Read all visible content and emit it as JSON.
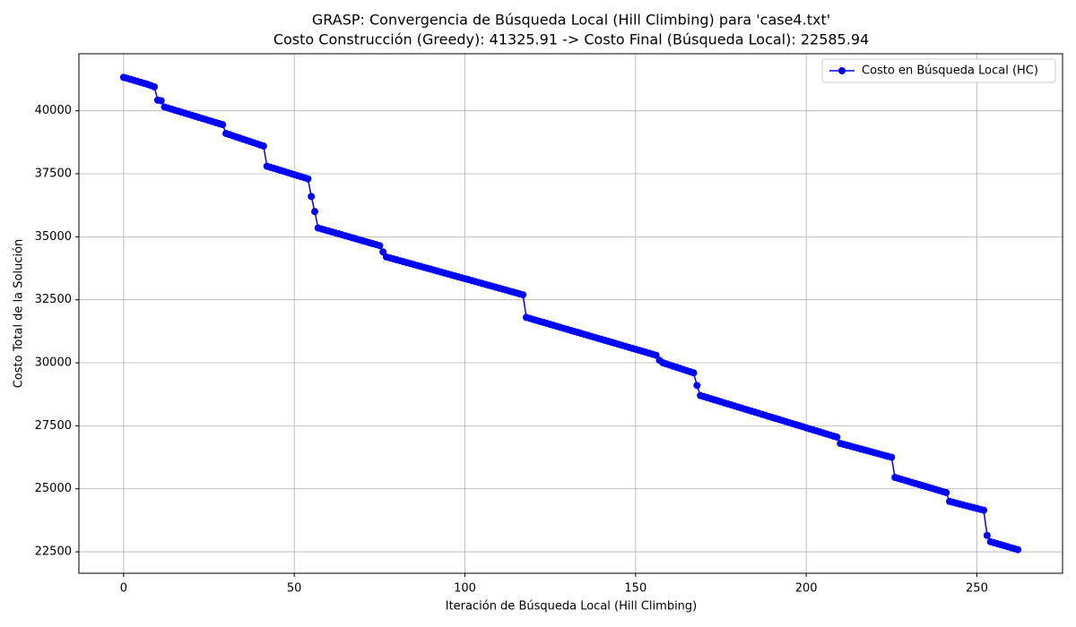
{
  "chart_data": {
    "type": "line",
    "title": "GRASP: Convergencia de Búsqueda Local (Hill Climbing) para 'case4.txt'",
    "subtitle": "Costo Construcción (Greedy): 41325.91 -> Costo Final (Búsqueda Local): 22585.94",
    "x_label": "Iteración de Búsqueda Local (Hill Climbing)",
    "y_label": "Costo Total de la Solución",
    "xlim": [
      -13.1,
      275.1
    ],
    "ylim": [
      21648.94,
      42262.88
    ],
    "xticks": [
      0,
      50,
      100,
      150,
      200,
      250
    ],
    "yticks": [
      22500,
      25000,
      27500,
      30000,
      32500,
      35000,
      37500,
      40000
    ],
    "grid": true,
    "legend_position": "upper right",
    "marker": "circle",
    "series": [
      {
        "name": "Costo en Búsqueda Local (HC)",
        "color": "#0000ff",
        "values": [
          41325.91,
          41290,
          41250,
          41210,
          41170,
          41130,
          41090,
          41050,
          41000,
          40950,
          40420,
          40400,
          40150,
          40109,
          40068,
          40026,
          39985,
          39944,
          39903,
          39862,
          39821,
          39779,
          39738,
          39697,
          39656,
          39615,
          39574,
          39532,
          39491,
          39450,
          39100,
          39055,
          39009,
          38964,
          38918,
          38873,
          38827,
          38782,
          38736,
          38691,
          38645,
          38600,
          37800,
          37758,
          37717,
          37675,
          37633,
          37592,
          37550,
          37508,
          37467,
          37425,
          37383,
          37342,
          37300,
          36600,
          36000,
          35350,
          35311,
          35272,
          35233,
          35194,
          35156,
          35117,
          35078,
          35039,
          35000,
          34961,
          34922,
          34883,
          34844,
          34806,
          34767,
          34728,
          34689,
          34650,
          34400,
          34200,
          34163,
          34125,
          34088,
          34050,
          34013,
          33975,
          33938,
          33900,
          33863,
          33825,
          33788,
          33750,
          33713,
          33675,
          33638,
          33600,
          33563,
          33525,
          33488,
          33450,
          33413,
          33375,
          33338,
          33300,
          33263,
          33225,
          33188,
          33150,
          33113,
          33075,
          33038,
          33000,
          32963,
          32925,
          32888,
          32850,
          32813,
          32775,
          32738,
          32700,
          31800,
          31761,
          31721,
          31682,
          31642,
          31603,
          31563,
          31524,
          31484,
          31445,
          31405,
          31366,
          31326,
          31287,
          31247,
          31208,
          31168,
          31129,
          31089,
          31050,
          31011,
          30971,
          30932,
          30892,
          30853,
          30813,
          30774,
          30734,
          30695,
          30655,
          30616,
          30576,
          30537,
          30497,
          30458,
          30418,
          30379,
          30339,
          30300,
          30100,
          30000,
          29956,
          29911,
          29867,
          29822,
          29778,
          29733,
          29689,
          29644,
          29600,
          29100,
          28700,
          28659,
          28618,
          28576,
          28535,
          28494,
          28453,
          28411,
          28370,
          28329,
          28288,
          28246,
          28205,
          28164,
          28123,
          28081,
          28040,
          27999,
          27958,
          27916,
          27875,
          27834,
          27793,
          27751,
          27710,
          27669,
          27628,
          27586,
          27545,
          27504,
          27463,
          27421,
          27380,
          27339,
          27298,
          27256,
          27215,
          27174,
          27133,
          27091,
          27050,
          26800,
          26763,
          26727,
          26690,
          26653,
          26617,
          26580,
          26543,
          26507,
          26470,
          26433,
          26397,
          26360,
          26323,
          26287,
          26250,
          25450,
          25410,
          25370,
          25330,
          25290,
          25250,
          25210,
          25170,
          25130,
          25090,
          25050,
          25010,
          24970,
          24930,
          24890,
          24850,
          24500,
          24465,
          24430,
          24395,
          24360,
          24325,
          24290,
          24255,
          24220,
          24185,
          24150,
          23150,
          22900,
          22861,
          22821,
          22782,
          22743,
          22703,
          22664,
          22625,
          22585.94
        ]
      }
    ]
  }
}
